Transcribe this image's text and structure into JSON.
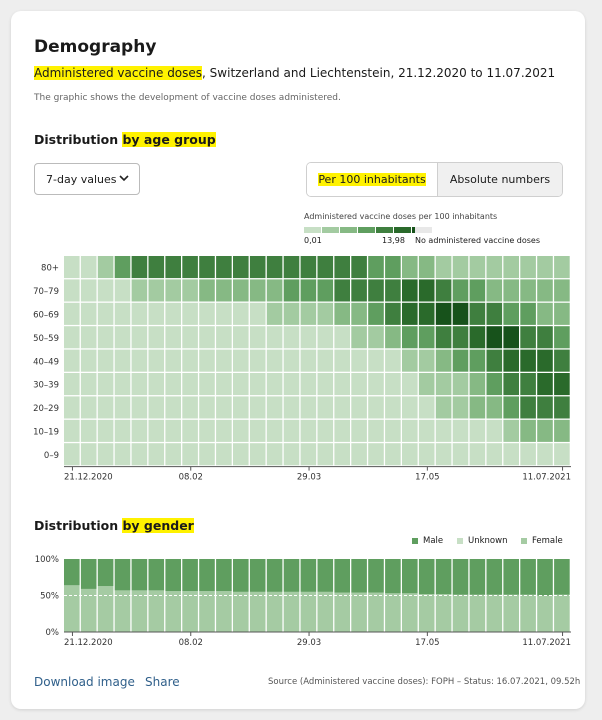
{
  "header": {
    "title": "Demography",
    "subtitle_highlight": "Administered vaccine doses",
    "subtitle_rest": ", Switzerland and Liechtenstein, 21.12.2020 to 11.07.2021",
    "description": "The graphic shows the development of vaccine doses administered."
  },
  "age_section": {
    "title_prefix": "Distribution ",
    "title_highlight": "by age group",
    "select_value": "7-day values",
    "toggle_active": "Per 100 inhabitants",
    "toggle_inactive": "Absolute numbers",
    "legend_title": "Administered vaccine doses per 100 inhabitants",
    "legend_min": "0,01",
    "legend_max": "13,98",
    "legend_na": "No administered vaccine doses"
  },
  "gender_section": {
    "title_prefix": "Distribution ",
    "title_highlight": "by gender",
    "legend": [
      {
        "label": "Male",
        "color": "#5f9e5f"
      },
      {
        "label": "Unknown",
        "color": "#c7dfc5"
      },
      {
        "label": "Female",
        "color": "#a5cba3"
      }
    ]
  },
  "footer": {
    "download_label": "Download image",
    "share_label": "Share",
    "source": "Source (Administered vaccine doses): FOPH – Status: 16.07.2021, 09.52h"
  },
  "colors": {
    "scale": [
      "#c7dfc5",
      "#a3cba1",
      "#86b984",
      "#5f9e5f",
      "#3f7f3f",
      "#2a6a2b",
      "#17521b"
    ],
    "na": "#e8e8e8",
    "male": "#5f9e5f",
    "female": "#a5cba3",
    "link": "#2f5f8a",
    "highlight": "#fff200"
  },
  "chart_data": [
    {
      "type": "heatmap",
      "title": "Distribution by age group",
      "rows": [
        "80+",
        "70–79",
        "60–69",
        "50–59",
        "40–49",
        "30–39",
        "20–29",
        "10–19",
        "0–9"
      ],
      "x_tick_labels": [
        "21.12.2020",
        "08.02",
        "29.03",
        "17.05",
        "11.07.2021"
      ],
      "x_tick_weeks": [
        0,
        7,
        14,
        21,
        29
      ],
      "weeks": 30,
      "value_range": [
        0.01,
        13.98
      ],
      "intensity_levels": [
        [
          0,
          0,
          1,
          3,
          4,
          4,
          4,
          4,
          4,
          4,
          4,
          4,
          4,
          4,
          4,
          4,
          4,
          4,
          3,
          3,
          2,
          2,
          1,
          1,
          1,
          1,
          1,
          1,
          1,
          1
        ],
        [
          0,
          0,
          0,
          0,
          1,
          1,
          1,
          1,
          2,
          2,
          2,
          2,
          2,
          3,
          3,
          3,
          4,
          4,
          4,
          4,
          5,
          5,
          4,
          3,
          3,
          2,
          2,
          2,
          2,
          2
        ],
        [
          0,
          0,
          0,
          0,
          0,
          0,
          0,
          0,
          0,
          0,
          0,
          0,
          1,
          1,
          1,
          1,
          2,
          2,
          3,
          4,
          5,
          5,
          6,
          6,
          4,
          4,
          3,
          3,
          2,
          2
        ],
        [
          0,
          0,
          0,
          0,
          0,
          0,
          0,
          0,
          0,
          0,
          0,
          0,
          0,
          0,
          0,
          0,
          0,
          1,
          1,
          2,
          3,
          3,
          4,
          4,
          5,
          6,
          6,
          4,
          4,
          3
        ],
        [
          0,
          0,
          0,
          0,
          0,
          0,
          0,
          0,
          0,
          0,
          0,
          0,
          0,
          0,
          0,
          0,
          0,
          0,
          0,
          0,
          1,
          1,
          2,
          3,
          3,
          4,
          5,
          5,
          5,
          4
        ],
        [
          0,
          0,
          0,
          0,
          0,
          0,
          0,
          0,
          0,
          0,
          0,
          0,
          0,
          0,
          0,
          0,
          0,
          0,
          0,
          0,
          0,
          1,
          1,
          1,
          2,
          3,
          4,
          4,
          5,
          5
        ],
        [
          0,
          0,
          0,
          0,
          0,
          0,
          0,
          0,
          0,
          0,
          0,
          0,
          0,
          0,
          0,
          0,
          0,
          0,
          0,
          0,
          0,
          0,
          1,
          1,
          2,
          2,
          3,
          4,
          4,
          4
        ],
        [
          0,
          0,
          0,
          0,
          0,
          0,
          0,
          0,
          0,
          0,
          0,
          0,
          0,
          0,
          0,
          0,
          0,
          0,
          0,
          0,
          0,
          0,
          0,
          0,
          0,
          0,
          1,
          2,
          2,
          2
        ],
        [
          0,
          0,
          0,
          0,
          0,
          0,
          0,
          0,
          0,
          0,
          0,
          0,
          0,
          0,
          0,
          0,
          0,
          0,
          0,
          0,
          0,
          0,
          0,
          0,
          0,
          0,
          0,
          0,
          0,
          0
        ]
      ]
    },
    {
      "type": "bar",
      "stacked": true,
      "title": "Distribution by gender",
      "ylim": [
        0,
        100
      ],
      "y_tick_labels": [
        "100%",
        "50%",
        "0%"
      ],
      "reference_line": 50,
      "x_tick_labels": [
        "21.12.2020",
        "08.02",
        "29.03",
        "17.05",
        "11.07.2021"
      ],
      "x_tick_weeks": [
        0,
        7,
        14,
        21,
        29
      ],
      "series": [
        {
          "name": "Female",
          "values": [
            64,
            59,
            63,
            57,
            57,
            57,
            56,
            56,
            56,
            56,
            55,
            55,
            55,
            55,
            55,
            55,
            54,
            54,
            54,
            53,
            53,
            52,
            52,
            51,
            51,
            51,
            51,
            51,
            50,
            51
          ]
        },
        {
          "name": "Unknown",
          "values": [
            0,
            0,
            0,
            0,
            0,
            0,
            0,
            0,
            0,
            0,
            0,
            0,
            0,
            0,
            0,
            0,
            0,
            0,
            0,
            0,
            0,
            0,
            0,
            0,
            0,
            0,
            0,
            0,
            0,
            0
          ]
        },
        {
          "name": "Male",
          "values": [
            36,
            41,
            37,
            43,
            43,
            43,
            44,
            44,
            44,
            44,
            45,
            45,
            45,
            45,
            45,
            45,
            46,
            46,
            46,
            47,
            47,
            48,
            48,
            49,
            49,
            49,
            49,
            49,
            50,
            49
          ]
        }
      ]
    }
  ]
}
